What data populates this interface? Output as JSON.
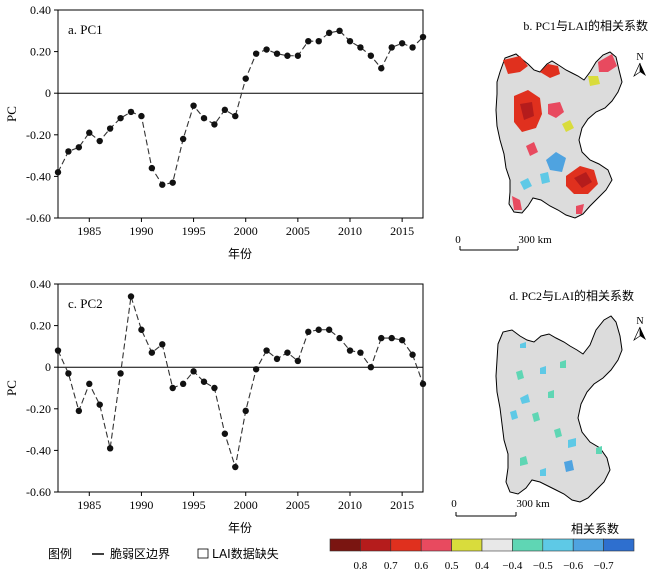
{
  "chart_data": [
    {
      "type": "line",
      "title": "a. PC1",
      "xlabel": "年份",
      "ylabel": "PC",
      "xlim": [
        1982,
        2017
      ],
      "ylim": [
        -0.6,
        0.4
      ],
      "xticks": [
        1985,
        1990,
        1995,
        2000,
        2005,
        2010,
        2015
      ],
      "xtick_labels": [
        "1985",
        "1990",
        "1995",
        "2000",
        "2005",
        "2010",
        "2015"
      ],
      "yticks": [
        -0.6,
        -0.4,
        -0.2,
        0,
        0.2,
        0.4
      ],
      "ytick_labels": [
        "-0.60",
        "-0.40",
        "-0.20",
        "0",
        "0.20",
        "0.40"
      ],
      "x": [
        1982,
        1983,
        1984,
        1985,
        1986,
        1987,
        1988,
        1989,
        1990,
        1991,
        1992,
        1993,
        1994,
        1995,
        1996,
        1997,
        1998,
        1999,
        2000,
        2001,
        2002,
        2003,
        2004,
        2005,
        2006,
        2007,
        2008,
        2009,
        2010,
        2011,
        2012,
        2013,
        2014,
        2015,
        2016,
        2017
      ],
      "values": [
        -0.38,
        -0.28,
        -0.26,
        -0.19,
        -0.23,
        -0.17,
        -0.12,
        -0.09,
        -0.11,
        -0.36,
        -0.44,
        -0.43,
        -0.22,
        -0.06,
        -0.12,
        -0.15,
        -0.08,
        -0.11,
        0.07,
        0.19,
        0.21,
        0.19,
        0.18,
        0.18,
        0.25,
        0.25,
        0.29,
        0.3,
        0.25,
        0.22,
        0.18,
        0.12,
        0.22,
        0.24,
        0.22,
        0.27
      ],
      "style": {
        "line": "dashed",
        "marker": "filled-circle",
        "color": "#333333"
      },
      "zero_line": true,
      "grid": false
    },
    {
      "type": "line",
      "title": "c. PC2",
      "xlabel": "年份",
      "ylabel": "PC",
      "xlim": [
        1982,
        2017
      ],
      "ylim": [
        -0.6,
        0.4
      ],
      "xticks": [
        1985,
        1990,
        1995,
        2000,
        2005,
        2010,
        2015
      ],
      "xtick_labels": [
        "1985",
        "1990",
        "1995",
        "2000",
        "2005",
        "2010",
        "2015"
      ],
      "yticks": [
        -0.6,
        -0.4,
        -0.2,
        0,
        0.2,
        0.4
      ],
      "ytick_labels": [
        "-0.60",
        "-0.40",
        "-0.20",
        "0",
        "0.20",
        "0.40"
      ],
      "x": [
        1982,
        1983,
        1984,
        1985,
        1986,
        1987,
        1988,
        1989,
        1990,
        1991,
        1992,
        1993,
        1994,
        1995,
        1996,
        1997,
        1998,
        1999,
        2000,
        2001,
        2002,
        2003,
        2004,
        2005,
        2006,
        2007,
        2008,
        2009,
        2010,
        2011,
        2012,
        2013,
        2014,
        2015,
        2016,
        2017
      ],
      "values": [
        0.08,
        -0.03,
        -0.21,
        -0.08,
        -0.18,
        -0.39,
        -0.03,
        0.34,
        0.18,
        0.07,
        0.11,
        -0.1,
        -0.08,
        -0.02,
        -0.07,
        -0.1,
        -0.32,
        -0.48,
        -0.21,
        -0.01,
        0.08,
        0.04,
        0.07,
        0.03,
        0.17,
        0.18,
        0.18,
        0.14,
        0.08,
        0.07,
        0.0,
        0.14,
        0.14,
        0.13,
        0.06,
        -0.08
      ],
      "style": {
        "line": "dashed",
        "marker": "filled-circle",
        "color": "#333333"
      },
      "zero_line": true,
      "grid": false
    }
  ],
  "maps": [
    {
      "title": "b. PC1与LAI的相关系数",
      "north": "N",
      "scale_start": "0",
      "scale_end": "300 km"
    },
    {
      "title": "d. PC2与LAI的相关系数",
      "north": "N",
      "scale_start": "0",
      "scale_end": "300 km"
    }
  ],
  "legend": {
    "prefix": "图例",
    "boundary_label": "脆弱区边界",
    "missing_label": "LAI数据缺失",
    "colorbar_title": "相关系数",
    "colors": [
      "#7a1511",
      "#b51c1c",
      "#e0301e",
      "#e84a5f",
      "#d9dc3c",
      "#e8e8e8",
      "#5fd6b4",
      "#5ec9e6",
      "#4fa3e0",
      "#2e6fcf"
    ],
    "labels": [
      "0.8",
      "0.7",
      "0.6",
      "0.5",
      "0.4",
      "−0.4",
      "−0.5",
      "−0.6",
      "−0.7"
    ]
  },
  "colors": {
    "region_fill": "#dcdcdc",
    "series": "#333333"
  }
}
